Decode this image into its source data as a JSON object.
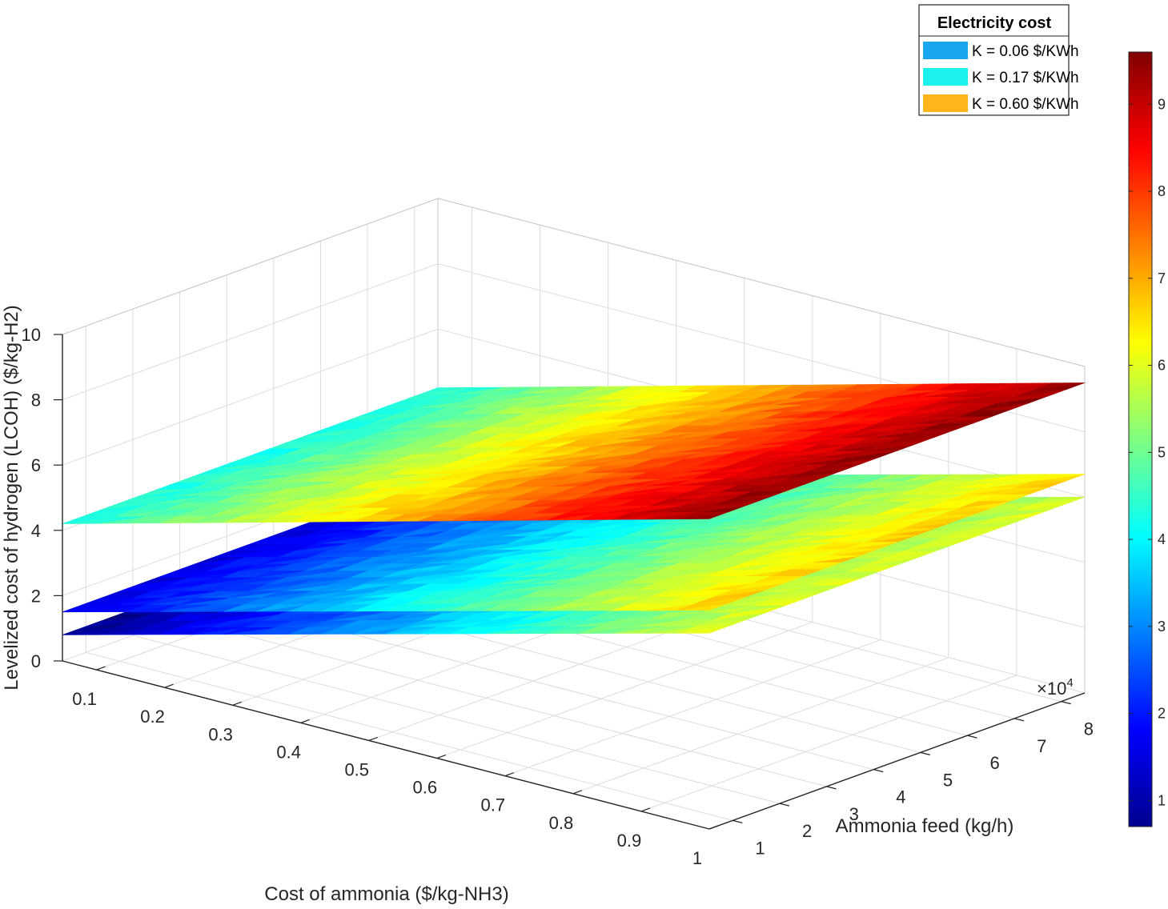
{
  "chart_data": {
    "type": "surface",
    "title": "",
    "xlabel": "Cost of ammonia ($/kg-NH3)",
    "ylabel": "Ammonia feed (kg/h)",
    "zlabel": "Levelized cost of hydrogen (LCOH) ($/kg-H2)",
    "x_ticks": [
      "0.1",
      "0.2",
      "0.3",
      "0.4",
      "0.5",
      "0.6",
      "0.7",
      "0.8",
      "0.9",
      "1"
    ],
    "y_ticks": [
      "1",
      "2",
      "3",
      "4",
      "5",
      "6",
      "7",
      "8"
    ],
    "y_multiplier": "×10",
    "y_multiplier_exp": "4",
    "z_ticks": [
      "0",
      "2",
      "4",
      "6",
      "8",
      "10"
    ],
    "xlim": [
      0.05,
      1.0
    ],
    "ylim": [
      0.5,
      8.5
    ],
    "zlim": [
      0,
      10
    ],
    "colorbar": {
      "colormap": "jet",
      "ticks": [
        "1",
        "2",
        "3",
        "4",
        "5",
        "6",
        "7",
        "8",
        "9"
      ],
      "range": [
        0.7,
        9.6
      ]
    },
    "legend": {
      "title": "Electricity cost",
      "position": "top-right",
      "entries": [
        {
          "label": "K = 0.06 $/KWh",
          "color": "#1aa6ee"
        },
        {
          "label": "K = 0.17 $/KWh",
          "color": "#1bf2ee"
        },
        {
          "label": "K = 0.60 $/KWh",
          "color": "#fcb51b"
        }
      ]
    },
    "series": [
      {
        "corner_values": {
          "x_min_y_min": 0.8,
          "x_max_y_min": 6.0,
          "x_min_y_max": 0.8,
          "x_max_y_max": 6.0
        }
      },
      {
        "corner_values": {
          "x_min_y_min": 1.5,
          "x_max_y_min": 6.7,
          "x_min_y_max": 1.5,
          "x_max_y_max": 6.7
        }
      },
      {
        "corner_values": {
          "x_min_y_min": 4.2,
          "x_max_y_min": 9.5,
          "x_min_y_max": 4.2,
          "x_max_y_max": 9.5
        }
      }
    ]
  }
}
